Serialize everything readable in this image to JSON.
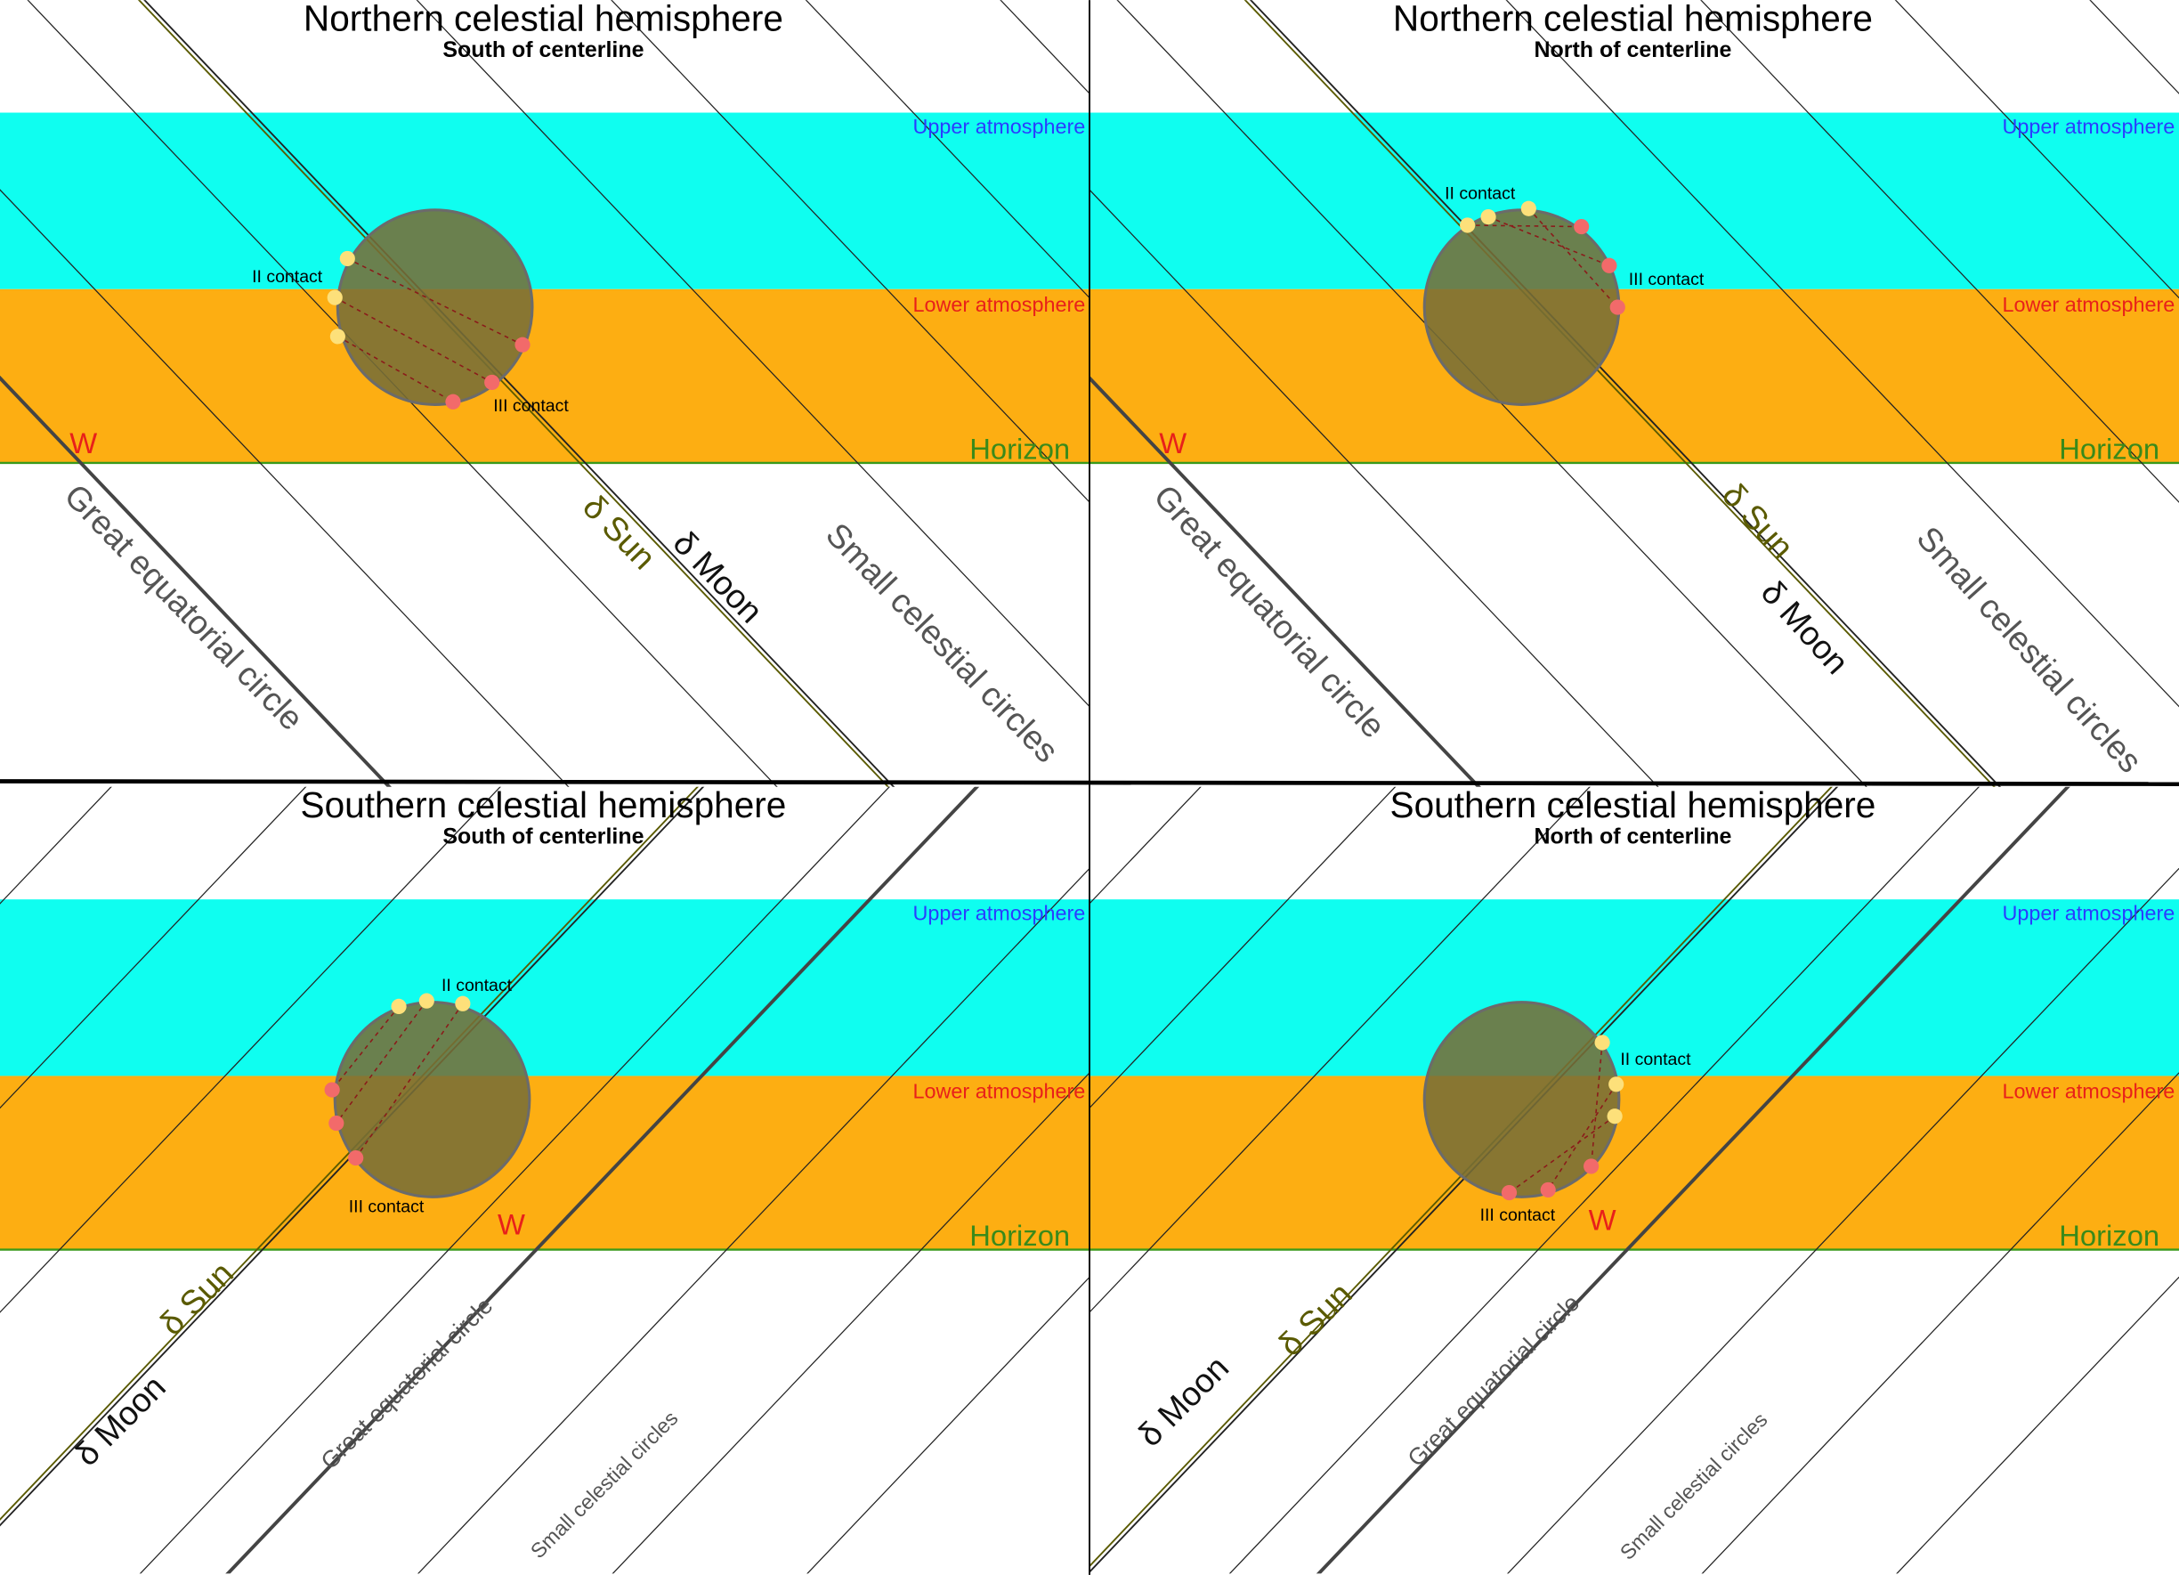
{
  "panels": [
    {
      "title": "Northern celestial hemisphere",
      "subtitle": "South of centerline",
      "upper_atmosphere": "Upper atmosphere",
      "lower_atmosphere": "Lower atmosphere",
      "horizon": "Horizon",
      "west": "W",
      "great_circle": "Great equatorial circle",
      "small_circles": "Small celestial circles",
      "sun": "δ Sun",
      "moon": "δ Moon",
      "second_contact": "II contact",
      "third_contact": "III contact"
    },
    {
      "title": "Northern celestial hemisphere",
      "subtitle": "North of centerline",
      "upper_atmosphere": "Upper atmosphere",
      "lower_atmosphere": "Lower atmosphere",
      "horizon": "Horizon",
      "west": "W",
      "great_circle": "Great equatorial circle",
      "small_circles": "Small celestial circles",
      "sun": "δ Sun",
      "moon": "δ Moon",
      "second_contact": "II contact",
      "third_contact": "III contact"
    },
    {
      "title": "Southern celestial hemisphere",
      "subtitle": "South of centerline",
      "upper_atmosphere": "Upper atmosphere",
      "lower_atmosphere": "Lower atmosphere",
      "horizon": "Horizon",
      "west": "W",
      "great_circle": "Great equatorial circle",
      "small_circles": "Small celestial circles",
      "sun": "δ Sun",
      "moon": "δ Moon",
      "second_contact": "II contact",
      "third_contact": "III contact"
    },
    {
      "title": "Southern celestial hemisphere",
      "subtitle": "North of centerline",
      "upper_atmosphere": "Upper atmosphere",
      "lower_atmosphere": "Lower atmosphere",
      "horizon": "Horizon",
      "west": "W",
      "great_circle": "Great equatorial circle",
      "small_circles": "Small celestial circles",
      "sun": "δ Sun",
      "moon": "δ Moon",
      "second_contact": "II contact",
      "third_contact": "III contact"
    }
  ]
}
